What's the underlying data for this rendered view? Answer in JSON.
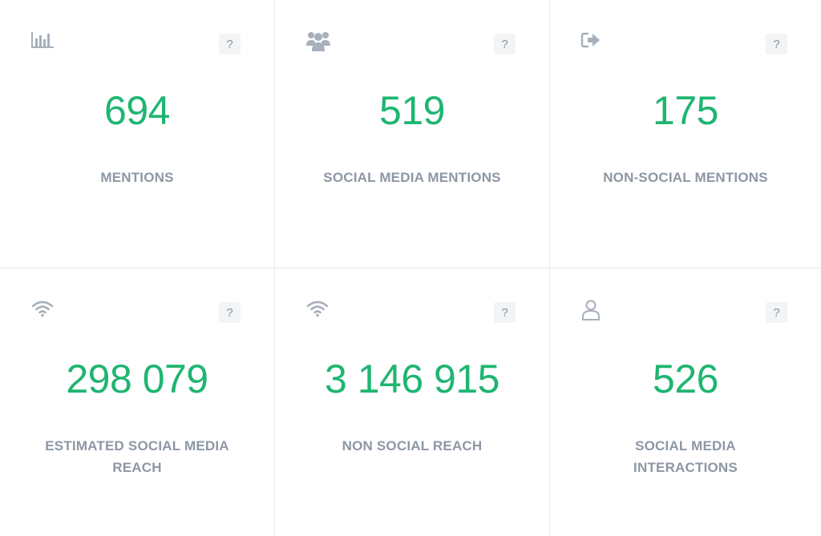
{
  "cards": [
    {
      "value": "694",
      "label": "MENTIONS",
      "icon": "bar-chart-icon",
      "help": "?"
    },
    {
      "value": "519",
      "label": "SOCIAL MEDIA MENTIONS",
      "icon": "users-group-icon",
      "help": "?"
    },
    {
      "value": "175",
      "label": "NON-SOCIAL MENTIONS",
      "icon": "sign-out-icon",
      "help": "?"
    },
    {
      "value": "298 079",
      "label": "ESTIMATED SOCIAL MEDIA REACH",
      "icon": "wifi-icon",
      "help": "?"
    },
    {
      "value": "3 146 915",
      "label": "NON SOCIAL REACH",
      "icon": "wifi-icon",
      "help": "?"
    },
    {
      "value": "526",
      "label": "SOCIAL MEDIA INTERACTIONS",
      "icon": "user-outline-icon",
      "help": "?"
    }
  ],
  "colors": {
    "value": "#1fb571",
    "label": "#8d97a4",
    "icon": "#a7b0bb",
    "help_bg": "#f3f4f6"
  }
}
